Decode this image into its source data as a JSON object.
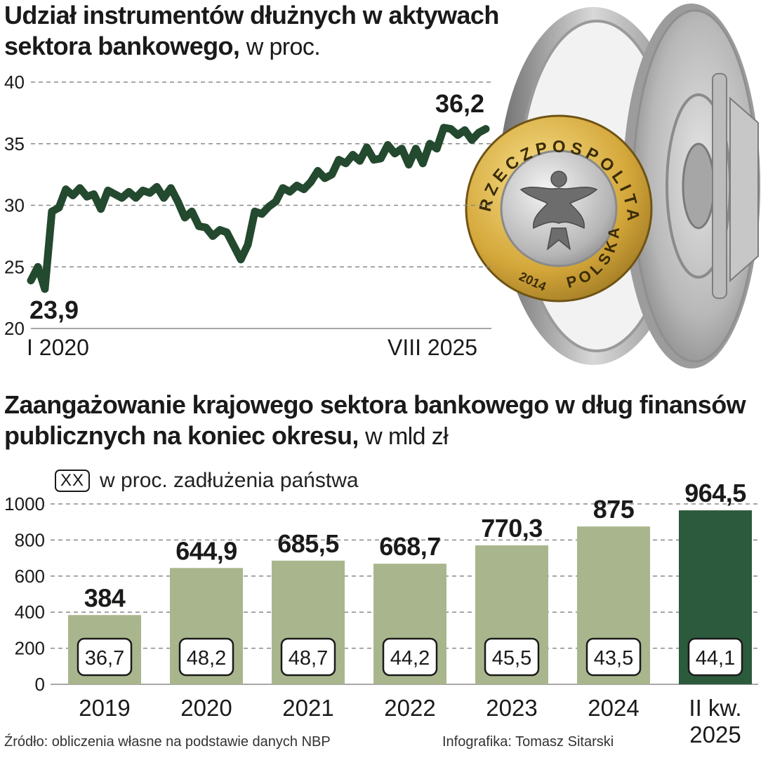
{
  "top": {
    "title": "Udział instrumentów dłużnych w aktywach sektora bankowego,",
    "unit": "w proc."
  },
  "bottom": {
    "title": "Zaangażowanie krajowego sektora bankowego w dług finansów publicznych na koniec okresu,",
    "unit": "w mld zł"
  },
  "legend": {
    "box_label": "XX",
    "text": "w proc. zadłużenia państwa"
  },
  "coin": {
    "top_text": "RZECZPOSPOLITA",
    "bottom_text": "POLSKA",
    "year": "2014"
  },
  "footer": {
    "source": "Źródło: obliczenia własne na podstawie danych NBP",
    "credit": "Infografika: Tomasz Sitarski"
  },
  "colors": {
    "line": "#23492e",
    "bar_light": "#a9b68d",
    "bar_dark": "#2c5a3c",
    "grid": "#8a8a8a"
  },
  "chart_data": [
    {
      "type": "line",
      "x_start_label": "I 2020",
      "x_end_label": "VIII 2025",
      "ylim": [
        20,
        40
      ],
      "yticks": [
        20,
        25,
        30,
        35,
        40
      ],
      "grid": "horizontal dashed",
      "annotations": [
        {
          "label": "23,9",
          "point": "first"
        },
        {
          "label": "36,2",
          "point": "last"
        }
      ],
      "series": [
        {
          "values": [
            23.9,
            25.0,
            23.2,
            29.5,
            29.8,
            31.3,
            30.8,
            31.4,
            30.7,
            30.9,
            29.7,
            31.2,
            30.9,
            30.6,
            31.1,
            30.6,
            31.2,
            31.0,
            31.5,
            30.6,
            31.4,
            30.3,
            29.0,
            29.5,
            28.3,
            28.2,
            27.5,
            28.0,
            27.8,
            26.7,
            25.6,
            26.8,
            29.5,
            29.3,
            29.9,
            30.3,
            31.4,
            31.1,
            31.6,
            31.3,
            31.9,
            32.8,
            32.2,
            32.5,
            33.7,
            33.4,
            34.1,
            33.6,
            34.7,
            33.7,
            33.8,
            34.9,
            34.2,
            34.6,
            33.3,
            34.6,
            33.4,
            35.0,
            34.6,
            36.3,
            36.2,
            35.7,
            36.1,
            35.3,
            35.9,
            36.2
          ]
        }
      ]
    },
    {
      "type": "bar",
      "categories": [
        "2019",
        "2020",
        "2021",
        "2022",
        "2023",
        "2024",
        "II kw.\n2025"
      ],
      "values": [
        384,
        644.9,
        685.5,
        668.7,
        770.3,
        875,
        964.5
      ],
      "value_labels": [
        "384",
        "644,9",
        "685,5",
        "668,7",
        "770,3",
        "875",
        "964,5"
      ],
      "box_labels": [
        "36,7",
        "48,2",
        "48,7",
        "44,2",
        "45,5",
        "43,5",
        "44,1"
      ],
      "ylim": [
        0,
        1000
      ],
      "yticks": [
        0,
        200,
        400,
        600,
        800,
        1000
      ],
      "grid": "horizontal dashed",
      "highlight_last": true
    }
  ]
}
